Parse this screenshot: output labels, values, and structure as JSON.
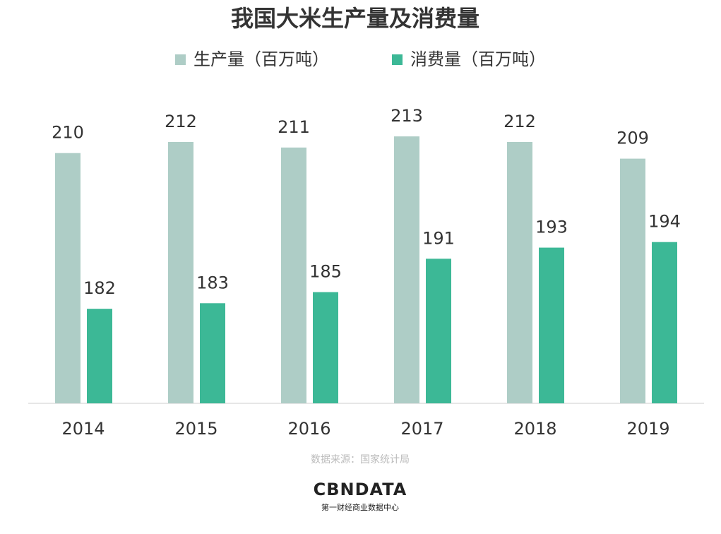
{
  "chart_data": {
    "type": "bar",
    "title": "我国大米生产量及消费量",
    "categories": [
      "2014",
      "2015",
      "2016",
      "2017",
      "2018",
      "2019"
    ],
    "series": [
      {
        "name": "生产量（百万吨）",
        "color": "#aecdc6",
        "values": [
          210,
          212,
          211,
          213,
          212,
          209
        ]
      },
      {
        "name": "消费量（百万吨）",
        "color": "#3cb896",
        "values": [
          182,
          183,
          185,
          191,
          193,
          194
        ]
      }
    ],
    "ylim": [
      165,
      220
    ],
    "source": "数据来源：国家统计局",
    "logo": "CBNDATA",
    "logo_tagline": "第一财经商业数据中心"
  }
}
